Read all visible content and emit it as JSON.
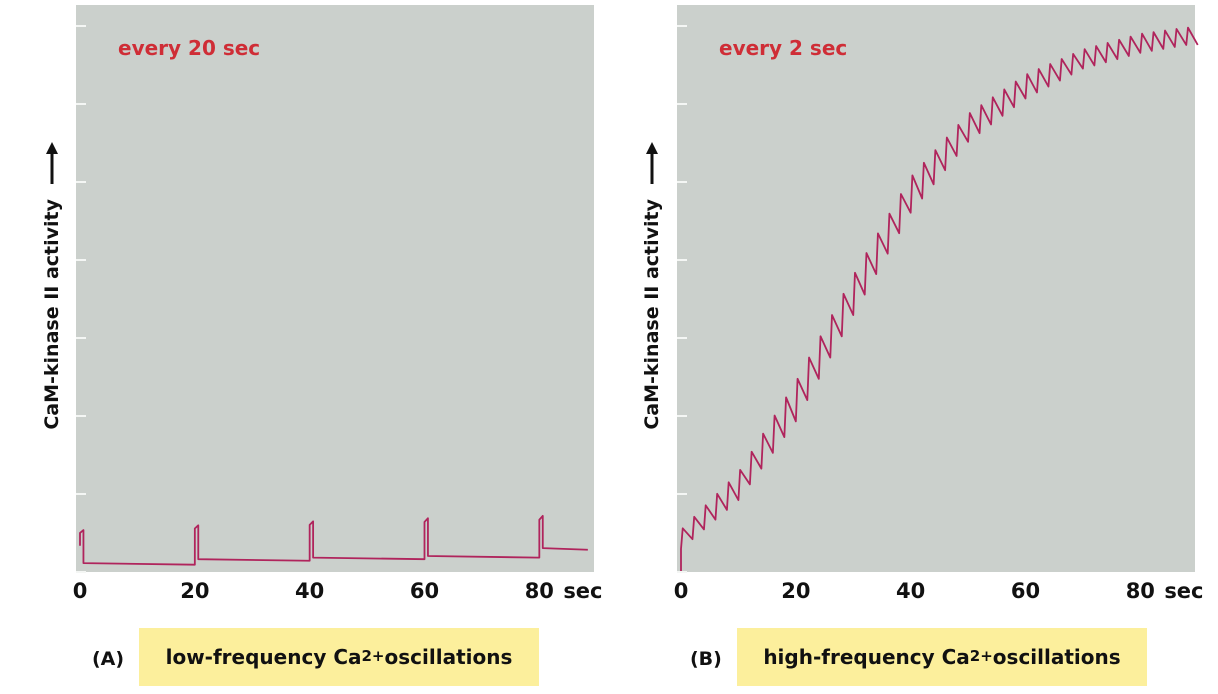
{
  "chart_data": [
    {
      "id": "A",
      "type": "line",
      "title": "every 20 sec",
      "ylabel": "CaM-kinase II activity",
      "arrow_icon": "up-arrow-icon",
      "xlabel_unit": "sec",
      "xticks": [
        0,
        20,
        40,
        60,
        80
      ],
      "xlim": [
        0,
        89
      ],
      "ylim": [
        0,
        7.2
      ],
      "color": "#b0245c",
      "background": "#cbd0cc",
      "pulse_period_sec": 20,
      "pulses": [
        {
          "t": 0,
          "base": 0.32,
          "peak": 0.52
        },
        {
          "t": 20,
          "base": 0.08,
          "peak": 0.58
        },
        {
          "t": 40,
          "base": 0.13,
          "peak": 0.63
        },
        {
          "t": 60,
          "base": 0.15,
          "peak": 0.67
        },
        {
          "t": 80,
          "base": 0.17,
          "peak": 0.7
        }
      ],
      "decay_to": [
        0.08,
        0.13,
        0.15,
        0.17,
        0.27
      ],
      "caption_letter": "(A)",
      "caption": {
        "before": "low-frequency Ca",
        "sup": "2+",
        "after": " oscillations"
      }
    },
    {
      "id": "B",
      "type": "line",
      "title": "every 2 sec",
      "ylabel": "CaM-kinase II activity",
      "arrow_icon": "up-arrow-icon",
      "xlabel_unit": "sec",
      "xticks": [
        0,
        20,
        40,
        60,
        80
      ],
      "xlim": [
        0,
        89
      ],
      "ylim": [
        0,
        7.2
      ],
      "color": "#b0245c",
      "background": "#cbd0cc",
      "pulse_period_sec": 2,
      "envelope_low": [
        [
          0,
          0.28
        ],
        [
          10,
          0.9
        ],
        [
          20,
          1.9
        ],
        [
          30,
          3.25
        ],
        [
          40,
          4.55
        ],
        [
          50,
          5.45
        ],
        [
          60,
          6.0
        ],
        [
          70,
          6.38
        ],
        [
          80,
          6.58
        ],
        [
          88,
          6.68
        ]
      ],
      "envelope_high": [
        [
          0,
          0.52
        ],
        [
          10,
          1.25
        ],
        [
          20,
          2.4
        ],
        [
          30,
          3.75
        ],
        [
          40,
          5.0
        ],
        [
          50,
          5.8
        ],
        [
          60,
          6.3
        ],
        [
          70,
          6.62
        ],
        [
          80,
          6.82
        ],
        [
          88,
          6.9
        ]
      ],
      "caption_letter": "(B)",
      "caption": {
        "before": "high-frequency Ca",
        "sup": "2+",
        "after": " oscillations"
      }
    }
  ]
}
